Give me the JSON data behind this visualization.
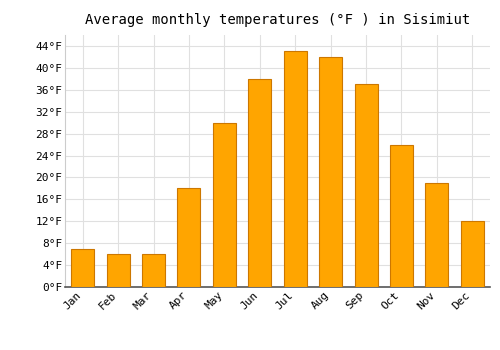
{
  "title": "Average monthly temperatures (°F ) in Sisimiut",
  "months": [
    "Jan",
    "Feb",
    "Mar",
    "Apr",
    "May",
    "Jun",
    "Jul",
    "Aug",
    "Sep",
    "Oct",
    "Nov",
    "Dec"
  ],
  "values": [
    7,
    6,
    6,
    18,
    30,
    38,
    43,
    42,
    37,
    26,
    19,
    12
  ],
  "bar_color": "#FFA500",
  "bar_edge_color": "#CC7700",
  "background_color": "#FFFFFF",
  "plot_bg_color": "#FFFFFF",
  "ylim": [
    0,
    46
  ],
  "yticks": [
    0,
    4,
    8,
    12,
    16,
    20,
    24,
    28,
    32,
    36,
    40,
    44
  ],
  "ytick_labels": [
    "0°F",
    "4°F",
    "8°F",
    "12°F",
    "16°F",
    "20°F",
    "24°F",
    "28°F",
    "32°F",
    "36°F",
    "40°F",
    "44°F"
  ],
  "title_fontsize": 10,
  "tick_fontsize": 8,
  "grid_color": "#E0E0E0"
}
